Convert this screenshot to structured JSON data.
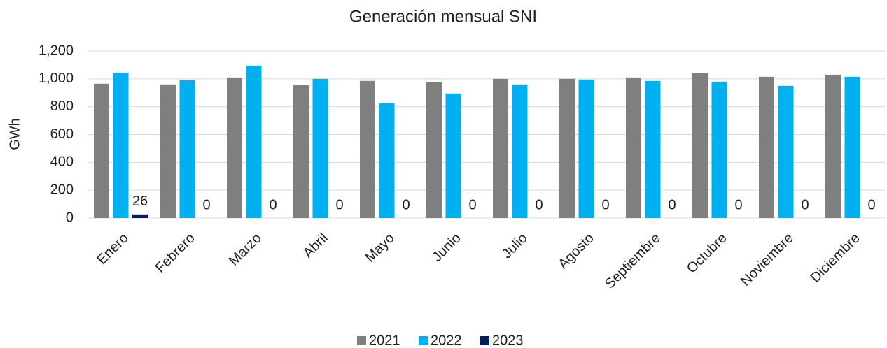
{
  "chart_data": {
    "type": "bar",
    "title": "Generación mensual SNI",
    "y_label": "GWh",
    "categories": [
      "Enero",
      "Febrero",
      "Marzo",
      "Abril",
      "Mayo",
      "Junio",
      "Julio",
      "Agosto",
      "Septiembre",
      "Octubre",
      "Noviembre",
      "Diciembre"
    ],
    "series": [
      {
        "name": "2021",
        "color": "#7f7f7f",
        "values": [
          965,
          960,
          1010,
          955,
          985,
          975,
          1000,
          1000,
          1010,
          1040,
          1015,
          1030
        ]
      },
      {
        "name": "2022",
        "color": "#00b0f0",
        "values": [
          1045,
          990,
          1095,
          1000,
          825,
          895,
          960,
          995,
          985,
          980,
          950,
          1015
        ]
      },
      {
        "name": "2023",
        "color": "#002060",
        "values": [
          26,
          0,
          0,
          0,
          0,
          0,
          0,
          0,
          0,
          0,
          0,
          0
        ],
        "data_labels": true
      }
    ],
    "ylim": [
      0,
      1200
    ],
    "yticks": [
      0,
      200,
      400,
      600,
      800,
      {
        "value": 1000,
        "label": "1,000"
      },
      {
        "value": 1200,
        "label": "1,200"
      }
    ],
    "grid": true,
    "legend": "bottom"
  }
}
